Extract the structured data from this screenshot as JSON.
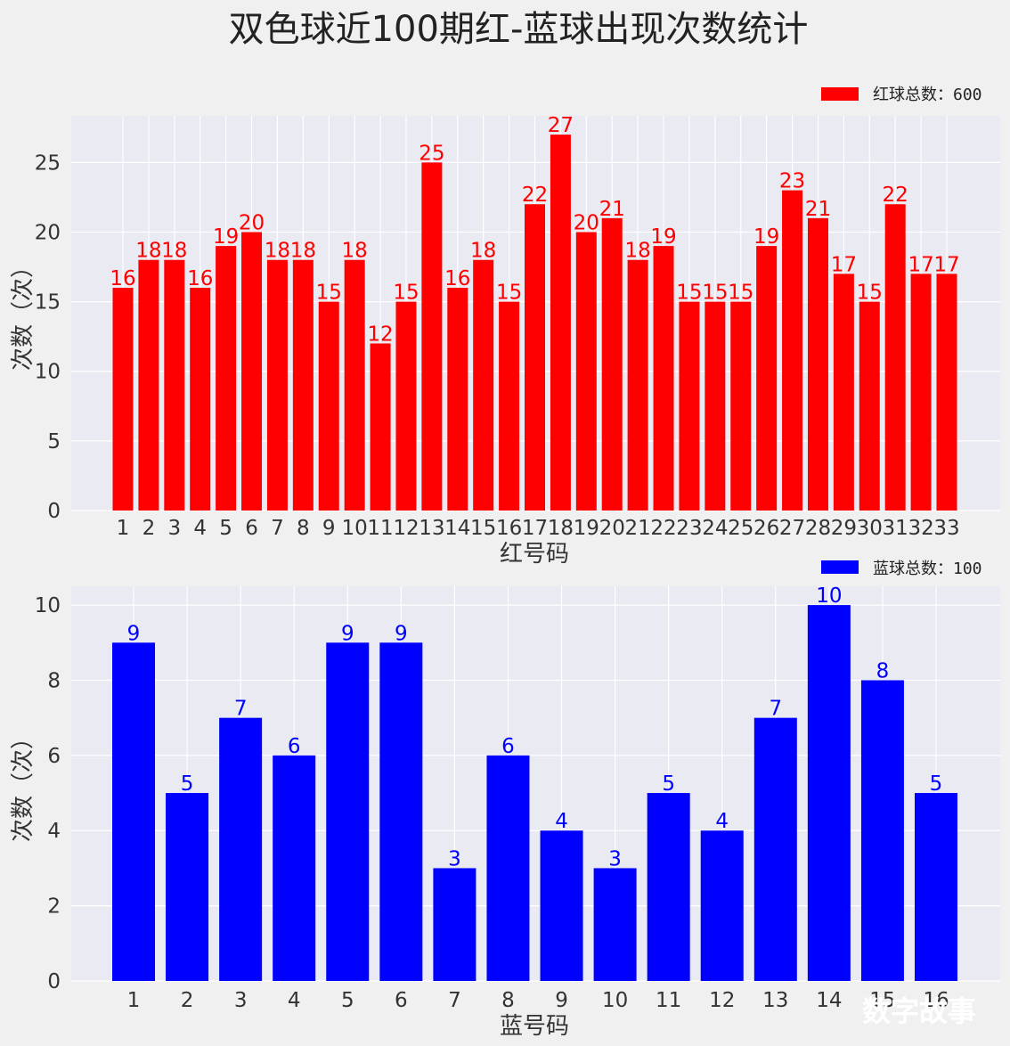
{
  "figure_title": "双色球近100期红-蓝球出现次数统计",
  "watermark": "数字故事",
  "colors": {
    "background": "#f0f0f0",
    "plot_bg": "#eaeaf2",
    "grid": "#ffffff",
    "red": "#ff0000",
    "blue": "#0000ff"
  },
  "chart_data": [
    {
      "type": "bar",
      "title": "",
      "xlabel": "红号码",
      "ylabel": "次数（次）",
      "legend": "红球总数：600",
      "legend_position": "top-right",
      "color": "#ff0000",
      "grid": true,
      "categories": [
        "1",
        "2",
        "3",
        "4",
        "5",
        "6",
        "7",
        "8",
        "9",
        "10",
        "11",
        "12",
        "13",
        "14",
        "15",
        "16",
        "17",
        "18",
        "19",
        "20",
        "21",
        "22",
        "23",
        "24",
        "25",
        "26",
        "27",
        "28",
        "29",
        "30",
        "31",
        "32",
        "33"
      ],
      "values": [
        16,
        18,
        18,
        16,
        19,
        20,
        18,
        18,
        15,
        18,
        12,
        15,
        25,
        16,
        18,
        15,
        22,
        27,
        20,
        21,
        18,
        19,
        15,
        15,
        15,
        19,
        23,
        21,
        17,
        15,
        22,
        17,
        17
      ],
      "yticks": [
        0,
        5,
        10,
        15,
        20,
        25
      ],
      "ylim": [
        0,
        28.35
      ]
    },
    {
      "type": "bar",
      "title": "",
      "xlabel": "蓝号码",
      "ylabel": "次数（次）",
      "legend": "蓝球总数：100",
      "legend_position": "top-right",
      "color": "#0000ff",
      "grid": true,
      "categories": [
        "1",
        "2",
        "3",
        "4",
        "5",
        "6",
        "7",
        "8",
        "9",
        "10",
        "11",
        "12",
        "13",
        "14",
        "15",
        "16"
      ],
      "values": [
        9,
        5,
        7,
        6,
        9,
        9,
        3,
        6,
        4,
        3,
        5,
        4,
        7,
        10,
        8,
        5
      ],
      "yticks": [
        0,
        2,
        4,
        6,
        8,
        10
      ],
      "ylim": [
        0,
        10.5
      ]
    }
  ]
}
